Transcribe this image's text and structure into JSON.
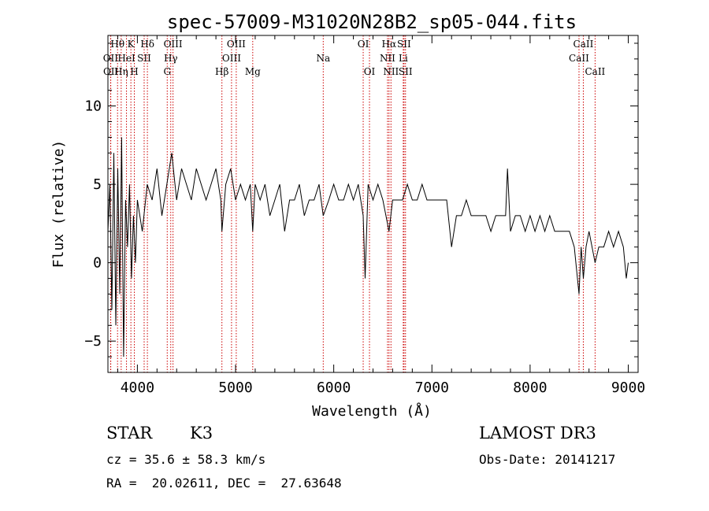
{
  "chart_data": {
    "type": "line",
    "title": "spec-57009-M31020N28B2_sp05-044.fits",
    "xlabel": "Wavelength (Å)",
    "ylabel": "Flux (relative)",
    "xlim": [
      3700,
      9100
    ],
    "ylim": [
      -7,
      14.5
    ],
    "x_ticks": [
      4000,
      5000,
      6000,
      7000,
      8000,
      9000
    ],
    "y_ticks": [
      -5,
      0,
      5,
      10
    ],
    "series": [
      {
        "name": "flux",
        "x": [
          3700,
          3720,
          3740,
          3760,
          3780,
          3800,
          3820,
          3840,
          3860,
          3880,
          3900,
          3920,
          3940,
          3960,
          3980,
          4000,
          4050,
          4100,
          4150,
          4200,
          4250,
          4300,
          4350,
          4400,
          4450,
          4500,
          4550,
          4600,
          4650,
          4700,
          4750,
          4800,
          4850,
          4861,
          4900,
          4950,
          5000,
          5050,
          5100,
          5150,
          5175,
          5200,
          5250,
          5300,
          5350,
          5400,
          5450,
          5500,
          5550,
          5600,
          5650,
          5700,
          5750,
          5800,
          5850,
          5893,
          5950,
          6000,
          6050,
          6100,
          6150,
          6200,
          6250,
          6300,
          6320,
          6350,
          6400,
          6450,
          6500,
          6563,
          6600,
          6650,
          6700,
          6750,
          6800,
          6850,
          6900,
          6950,
          7000,
          7050,
          7100,
          7150,
          7200,
          7250,
          7300,
          7350,
          7400,
          7450,
          7500,
          7550,
          7600,
          7650,
          7700,
          7750,
          7770,
          7800,
          7850,
          7900,
          7950,
          8000,
          8050,
          8100,
          8150,
          8200,
          8250,
          8300,
          8350,
          8400,
          8450,
          8498,
          8520,
          8542,
          8570,
          8600,
          8662,
          8700,
          8750,
          8800,
          8850,
          8900,
          8950,
          8980,
          9000
        ],
        "values": [
          2,
          5,
          -3,
          7,
          -4,
          6,
          -2,
          8,
          -6,
          4,
          1,
          5,
          -1,
          3,
          0,
          4,
          2,
          5,
          4,
          6,
          3,
          5,
          7,
          4,
          6,
          5,
          4,
          6,
          5,
          4,
          5,
          6,
          4,
          2,
          5,
          6,
          4,
          5,
          4,
          5,
          2,
          5,
          4,
          5,
          3,
          4,
          5,
          2,
          4,
          4,
          5,
          3,
          4,
          4,
          5,
          3,
          4,
          5,
          4,
          4,
          5,
          4,
          5,
          3,
          -1,
          5,
          4,
          5,
          4,
          2,
          4,
          4,
          4,
          5,
          4,
          4,
          5,
          4,
          4,
          4,
          4,
          4,
          1,
          3,
          3,
          4,
          3,
          3,
          3,
          3,
          2,
          3,
          3,
          3,
          6,
          2,
          3,
          3,
          2,
          3,
          2,
          3,
          2,
          3,
          2,
          2,
          2,
          2,
          1,
          -2,
          1,
          -1,
          1,
          2,
          0,
          1,
          1,
          2,
          1,
          2,
          1,
          -1,
          0
        ]
      }
    ],
    "spectral_lines": [
      {
        "name": "Hθ",
        "x": 3798,
        "row": 0
      },
      {
        "name": "OII",
        "x": 3727,
        "row": 1
      },
      {
        "name": "OII",
        "x": 3729,
        "row": 2
      },
      {
        "name": "Hη",
        "x": 3835,
        "row": 2
      },
      {
        "name": "HeI",
        "x": 3889,
        "row": 1
      },
      {
        "name": "K",
        "x": 3934,
        "row": 0
      },
      {
        "name": "SII",
        "x": 4069,
        "row": 1
      },
      {
        "name": "H",
        "x": 3969,
        "row": 2
      },
      {
        "name": "Hδ",
        "x": 4102,
        "row": 0
      },
      {
        "name": "OIII",
        "x": 4363,
        "row": 0
      },
      {
        "name": "Hγ",
        "x": 4340,
        "row": 1
      },
      {
        "name": "G",
        "x": 4304,
        "row": 2
      },
      {
        "name": "Hβ",
        "x": 4861,
        "row": 2
      },
      {
        "name": "OIII",
        "x": 5007,
        "row": 0
      },
      {
        "name": "OIII",
        "x": 4959,
        "row": 1
      },
      {
        "name": "Mg",
        "x": 5175,
        "row": 2
      },
      {
        "name": "Na",
        "x": 5893,
        "row": 1
      },
      {
        "name": "OI",
        "x": 6300,
        "row": 0
      },
      {
        "name": "OI",
        "x": 6364,
        "row": 2
      },
      {
        "name": "Hα",
        "x": 6563,
        "row": 0
      },
      {
        "name": "NII",
        "x": 6548,
        "row": 1
      },
      {
        "name": "NII",
        "x": 6583,
        "row": 2
      },
      {
        "name": "SII",
        "x": 6716,
        "row": 0
      },
      {
        "name": "Li",
        "x": 6708,
        "row": 1
      },
      {
        "name": "SII",
        "x": 6731,
        "row": 2
      },
      {
        "name": "CaII",
        "x": 8542,
        "row": 0
      },
      {
        "name": "CaII",
        "x": 8498,
        "row": 1
      },
      {
        "name": "CaII",
        "x": 8662,
        "row": 2
      }
    ]
  },
  "info": {
    "class_label": "STAR",
    "subclass": "K3",
    "survey": "LAMOST DR3",
    "cz": "cz = 35.6 ± 58.3 km/s",
    "obs_date": "Obs-Date: 20141217",
    "coords": "RA =  20.02611, DEC =  27.63648"
  }
}
